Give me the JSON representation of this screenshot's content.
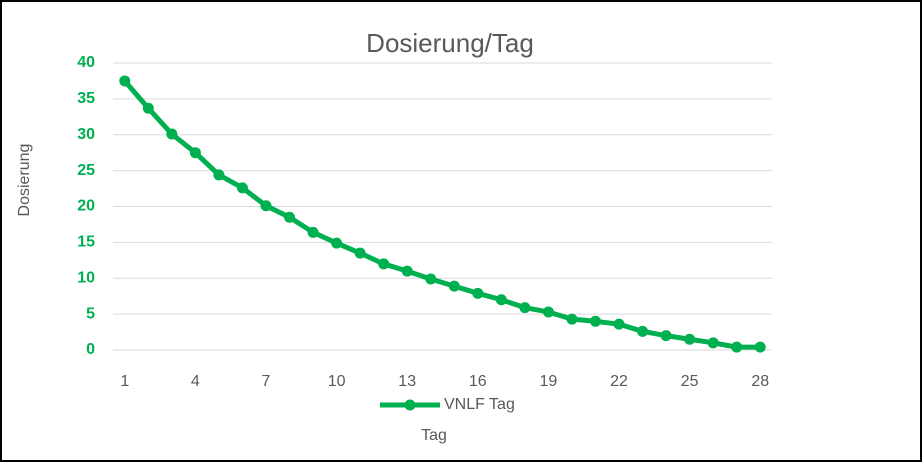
{
  "chart_data": {
    "type": "line",
    "title": "Dosierung/Tag",
    "x_label": "Tag",
    "y_label": "Dosierung",
    "categories": [
      1,
      null,
      null,
      4,
      null,
      null,
      7,
      null,
      null,
      10,
      null,
      null,
      13,
      null,
      null,
      16,
      null,
      null,
      19,
      null,
      null,
      22,
      null,
      null,
      25,
      null,
      null,
      28
    ],
    "series": [
      {
        "name": "VNLF Tag",
        "color": "#00b050",
        "values": [
          37.5,
          33.7,
          30.1,
          27.5,
          24.4,
          22.6,
          20.1,
          18.5,
          16.4,
          14.9,
          13.5,
          12.0,
          11.0,
          9.9,
          8.9,
          7.9,
          7.0,
          5.9,
          5.3,
          4.3,
          4.0,
          3.6,
          2.6,
          2.0,
          1.5,
          1.0,
          0.4,
          0.4
        ]
      }
    ],
    "ylim": [
      0,
      40
    ],
    "yticks": [
      0,
      5,
      10,
      15,
      20,
      25,
      30,
      35,
      40
    ],
    "grid": true,
    "legend": "bottom"
  }
}
